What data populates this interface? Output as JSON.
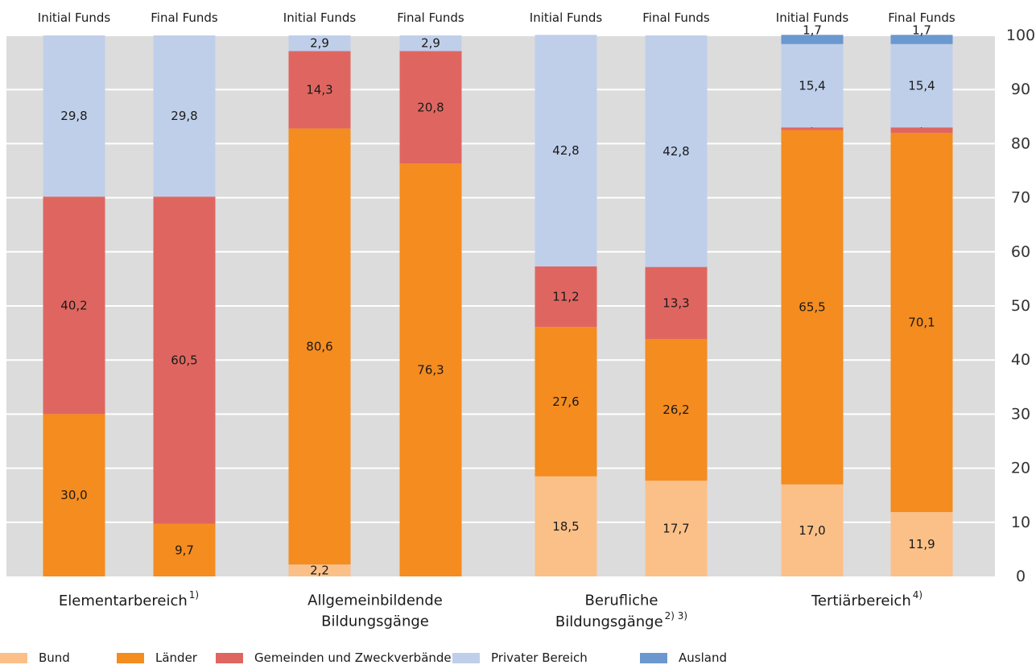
{
  "chart_data": {
    "type": "bar",
    "stacked": true,
    "orientation": "vertical",
    "ylim": [
      0,
      100
    ],
    "yticks": [
      "0",
      "10",
      "20",
      "30",
      "40",
      "50",
      "60",
      "70",
      "80",
      "90",
      "100"
    ],
    "y_axis_position": "right",
    "grid": true,
    "legend_position": "bottom",
    "stack_order": [
      "Bund",
      "Länder",
      "Gemeinden und Zweckverbände",
      "Privater Bereich",
      "Ausland"
    ],
    "colors": {
      "Bund": "#fbc088",
      "Länder": "#f48c20",
      "Gemeinden und Zweckverbände": "#df6660",
      "Privater Bereich": "#bfcfea",
      "Ausland": "#6b98cf",
      "plot_background": "#dcdcdc"
    },
    "groups": [
      {
        "label_lines": [
          "Elementarbereich"
        ],
        "superscript": "1)",
        "bars": [
          {
            "label": "Initial Funds",
            "segments": [
              {
                "series": "Bund",
                "value": 0,
                "label": ""
              },
              {
                "series": "Länder",
                "value": 30.0,
                "label": "30,0"
              },
              {
                "series": "Gemeinden und Zweckverbände",
                "value": 40.2,
                "label": "40,2"
              },
              {
                "series": "Privater Bereich",
                "value": 29.8,
                "label": "29,8"
              },
              {
                "series": "Ausland",
                "value": 0,
                "label": ""
              }
            ]
          },
          {
            "label": "Final Funds",
            "segments": [
              {
                "series": "Bund",
                "value": 0,
                "label": ""
              },
              {
                "series": "Länder",
                "value": 9.7,
                "label": "9,7"
              },
              {
                "series": "Gemeinden und Zweckverbände",
                "value": 60.5,
                "label": "60,5"
              },
              {
                "series": "Privater Bereich",
                "value": 29.8,
                "label": "29,8"
              },
              {
                "series": "Ausland",
                "value": 0,
                "label": ""
              }
            ]
          }
        ]
      },
      {
        "label_lines": [
          "Allgemeinbildende",
          "Bildungsgänge"
        ],
        "superscript": "",
        "bars": [
          {
            "label": "Initial Funds",
            "segments": [
              {
                "series": "Bund",
                "value": 2.2,
                "label": "2,2"
              },
              {
                "series": "Länder",
                "value": 80.6,
                "label": "80,6"
              },
              {
                "series": "Gemeinden und Zweckverbände",
                "value": 14.3,
                "label": "14,3"
              },
              {
                "series": "Privater Bereich",
                "value": 2.9,
                "label": "2,9"
              },
              {
                "series": "Ausland",
                "value": 0,
                "label": ""
              }
            ]
          },
          {
            "label": "Final Funds",
            "segments": [
              {
                "series": "Bund",
                "value": 0,
                "label": ""
              },
              {
                "series": "Länder",
                "value": 76.3,
                "label": "76,3"
              },
              {
                "series": "Gemeinden und Zweckverbände",
                "value": 20.8,
                "label": "20,8"
              },
              {
                "series": "Privater Bereich",
                "value": 2.9,
                "label": "2,9"
              },
              {
                "series": "Ausland",
                "value": 0,
                "label": ""
              }
            ]
          }
        ]
      },
      {
        "label_lines": [
          "Berufliche",
          "Bildungsgänge"
        ],
        "superscript": "2) 3)",
        "bars": [
          {
            "label": "Initial Funds",
            "segments": [
              {
                "series": "Bund",
                "value": 18.5,
                "label": "18,5"
              },
              {
                "series": "Länder",
                "value": 27.6,
                "label": "27,6"
              },
              {
                "series": "Gemeinden und Zweckverbände",
                "value": 11.2,
                "label": "11,2"
              },
              {
                "series": "Privater Bereich",
                "value": 42.8,
                "label": "42,8"
              },
              {
                "series": "Ausland",
                "value": 0,
                "label": ""
              }
            ]
          },
          {
            "label": "Final Funds",
            "segments": [
              {
                "series": "Bund",
                "value": 17.7,
                "label": "17,7"
              },
              {
                "series": "Länder",
                "value": 26.2,
                "label": "26,2"
              },
              {
                "series": "Gemeinden und Zweckverbände",
                "value": 13.3,
                "label": "13,3"
              },
              {
                "series": "Privater Bereich",
                "value": 42.8,
                "label": "42,8"
              },
              {
                "series": "Ausland",
                "value": 0,
                "label": ""
              }
            ]
          }
        ]
      },
      {
        "label_lines": [
          "Tertiärbereich"
        ],
        "superscript": "4)",
        "bars": [
          {
            "label": "Initial Funds",
            "segments": [
              {
                "series": "Bund",
                "value": 17.0,
                "label": "17,0"
              },
              {
                "series": "Länder",
                "value": 65.5,
                "label": "65,5"
              },
              {
                "series": "Gemeinden und Zweckverbände",
                "value": 0.5,
                "label": "0,5"
              },
              {
                "series": "Privater Bereich",
                "value": 15.4,
                "label": "15,4"
              },
              {
                "series": "Ausland",
                "value": 1.7,
                "label": "1,7"
              }
            ]
          },
          {
            "label": "Final Funds",
            "segments": [
              {
                "series": "Bund",
                "value": 11.9,
                "label": "11,9"
              },
              {
                "series": "Länder",
                "value": 70.1,
                "label": "70,1"
              },
              {
                "series": "Gemeinden und Zweckverbände",
                "value": 1.0,
                "label": "1,0"
              },
              {
                "series": "Privater Bereich",
                "value": 15.4,
                "label": "15,4"
              },
              {
                "series": "Ausland",
                "value": 1.7,
                "label": "1,7"
              }
            ]
          }
        ]
      }
    ],
    "legend": [
      "Bund",
      "Länder",
      "Gemeinden und Zweckverbände",
      "Privater Bereich",
      "Ausland"
    ]
  }
}
